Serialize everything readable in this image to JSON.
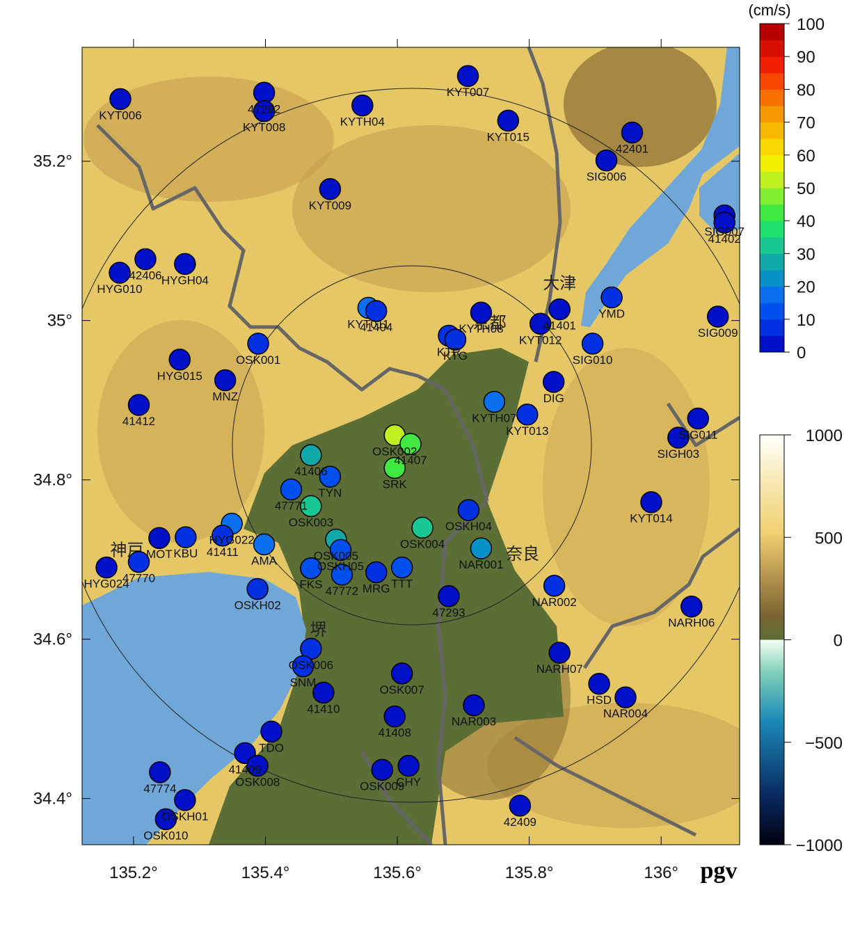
{
  "map": {
    "title": "pgv",
    "xlim": [
      135.122,
      136.119
    ],
    "ylim": [
      34.342,
      35.343
    ],
    "xticks": [
      {
        "value": 135.2,
        "label": "135.2°"
      },
      {
        "value": 135.4,
        "label": "135.4°"
      },
      {
        "value": 135.6,
        "label": "135.6°"
      },
      {
        "value": 135.8,
        "label": "135.8°"
      },
      {
        "value": 136.0,
        "label": "136°"
      }
    ],
    "yticks": [
      {
        "value": 34.4,
        "label": "34.4°"
      },
      {
        "value": 34.6,
        "label": "34.6°"
      },
      {
        "value": 34.8,
        "label": "34.8°"
      },
      {
        "value": 35.0,
        "label": "35°"
      },
      {
        "value": 35.2,
        "label": "35.2°"
      }
    ],
    "place_labels": [
      {
        "text": "大津",
        "lon": 135.846,
        "lat": 35.04
      },
      {
        "text": "京都",
        "lon": 135.74,
        "lat": 34.99
      },
      {
        "text": "奈良",
        "lon": 135.79,
        "lat": 34.7
      },
      {
        "text": "神戸",
        "lon": 135.19,
        "lat": 34.705
      },
      {
        "text": "堺",
        "lon": 135.48,
        "lat": 34.605
      }
    ],
    "stations": [
      {
        "name": "KYT006",
        "lon": 135.18,
        "lat": 35.278,
        "pgv": 2
      },
      {
        "name": "47292",
        "lon": 135.398,
        "lat": 35.286,
        "pgv": 2
      },
      {
        "name": "KYT008",
        "lon": 135.398,
        "lat": 35.263,
        "pgv": 2
      },
      {
        "name": "KYTH04",
        "lon": 135.547,
        "lat": 35.27,
        "pgv": 2
      },
      {
        "name": "KYT007",
        "lon": 135.707,
        "lat": 35.307,
        "pgv": 2
      },
      {
        "name": "KYT015",
        "lon": 135.768,
        "lat": 35.251,
        "pgv": 2
      },
      {
        "name": "42401",
        "lon": 135.956,
        "lat": 35.236,
        "pgv": 2
      },
      {
        "name": "SIG006",
        "lon": 135.917,
        "lat": 35.201,
        "pgv": 3
      },
      {
        "name": "KYT009",
        "lon": 135.498,
        "lat": 35.165,
        "pgv": 2
      },
      {
        "name": "SIG007",
        "lon": 136.096,
        "lat": 35.132,
        "pgv": 3
      },
      {
        "name": "41402",
        "lon": 136.096,
        "lat": 35.123,
        "pgv": 4
      },
      {
        "name": "HYG010",
        "lon": 135.179,
        "lat": 35.06,
        "pgv": 2
      },
      {
        "name": "42406",
        "lon": 135.218,
        "lat": 35.077,
        "pgv": 2
      },
      {
        "name": "HYGH04",
        "lon": 135.278,
        "lat": 35.071,
        "pgv": 2
      },
      {
        "name": "KYT011",
        "lon": 135.556,
        "lat": 35.016,
        "pgv": 15
      },
      {
        "name": "41404",
        "lon": 135.568,
        "lat": 35.012,
        "pgv": 7
      },
      {
        "name": "KYTH08",
        "lon": 135.727,
        "lat": 35.01,
        "pgv": 3
      },
      {
        "name": "41401",
        "lon": 135.846,
        "lat": 35.014,
        "pgv": 4
      },
      {
        "name": "YMD",
        "lon": 135.925,
        "lat": 35.029,
        "pgv": 5
      },
      {
        "name": "KYT012",
        "lon": 135.817,
        "lat": 34.996,
        "pgv": 3
      },
      {
        "name": "SIG010",
        "lon": 135.896,
        "lat": 34.971,
        "pgv": 5
      },
      {
        "name": "SIG009",
        "lon": 136.086,
        "lat": 35.005,
        "pgv": 2
      },
      {
        "name": "KTR",
        "lon": 135.678,
        "lat": 34.981,
        "pgv": 6
      },
      {
        "name": "KTG",
        "lon": 135.688,
        "lat": 34.976,
        "pgv": 6
      },
      {
        "name": "OSK001",
        "lon": 135.389,
        "lat": 34.971,
        "pgv": 5
      },
      {
        "name": "HYG015",
        "lon": 135.27,
        "lat": 34.951,
        "pgv": 4
      },
      {
        "name": "MNZ",
        "lon": 135.339,
        "lat": 34.925,
        "pgv": 3
      },
      {
        "name": "41412",
        "lon": 135.208,
        "lat": 34.894,
        "pgv": 3
      },
      {
        "name": "DIG",
        "lon": 135.837,
        "lat": 34.923,
        "pgv": 3
      },
      {
        "name": "KYTH07",
        "lon": 135.747,
        "lat": 34.898,
        "pgv": 15
      },
      {
        "name": "KYT013",
        "lon": 135.797,
        "lat": 34.882,
        "pgv": 8
      },
      {
        "name": "SIG011",
        "lon": 136.056,
        "lat": 34.877,
        "pgv": 3
      },
      {
        "name": "SIGH03",
        "lon": 136.026,
        "lat": 34.853,
        "pgv": 3
      },
      {
        "name": "OSK002",
        "lon": 135.596,
        "lat": 34.856,
        "pgv": 50
      },
      {
        "name": "41407",
        "lon": 135.62,
        "lat": 34.845,
        "pgv": 40
      },
      {
        "name": "SRK",
        "lon": 135.596,
        "lat": 34.815,
        "pgv": 43
      },
      {
        "name": "41406",
        "lon": 135.469,
        "lat": 34.831,
        "pgv": 28
      },
      {
        "name": "TYN",
        "lon": 135.498,
        "lat": 34.804,
        "pgv": 13
      },
      {
        "name": "47771",
        "lon": 135.439,
        "lat": 34.788,
        "pgv": 14
      },
      {
        "name": "OSK003",
        "lon": 135.469,
        "lat": 34.767,
        "pgv": 32
      },
      {
        "name": "HYG022",
        "lon": 135.349,
        "lat": 34.745,
        "pgv": 17
      },
      {
        "name": "41411",
        "lon": 135.335,
        "lat": 34.73,
        "pgv": 8
      },
      {
        "name": "KBU",
        "lon": 135.279,
        "lat": 34.728,
        "pgv": 8
      },
      {
        "name": "MOT",
        "lon": 135.239,
        "lat": 34.727,
        "pgv": 3
      },
      {
        "name": "47770",
        "lon": 135.208,
        "lat": 34.697,
        "pgv": 5
      },
      {
        "name": "HYG024",
        "lon": 135.159,
        "lat": 34.69,
        "pgv": 3
      },
      {
        "name": "AMA",
        "lon": 135.398,
        "lat": 34.719,
        "pgv": 16
      },
      {
        "name": "OSK005",
        "lon": 135.507,
        "lat": 34.725,
        "pgv": 25
      },
      {
        "name": "OSKH05",
        "lon": 135.514,
        "lat": 34.712,
        "pgv": 14
      },
      {
        "name": "FKS",
        "lon": 135.469,
        "lat": 34.689,
        "pgv": 14
      },
      {
        "name": "47772",
        "lon": 135.516,
        "lat": 34.681,
        "pgv": 10
      },
      {
        "name": "MRG",
        "lon": 135.568,
        "lat": 34.684,
        "pgv": 6
      },
      {
        "name": "TTT",
        "lon": 135.607,
        "lat": 34.69,
        "pgv": 10
      },
      {
        "name": "OSK004",
        "lon": 135.638,
        "lat": 34.74,
        "pgv": 30
      },
      {
        "name": "OSKH04",
        "lon": 135.708,
        "lat": 34.762,
        "pgv": 5
      },
      {
        "name": "NAR001",
        "lon": 135.727,
        "lat": 34.714,
        "pgv": 24
      },
      {
        "name": "NAR002",
        "lon": 135.838,
        "lat": 34.667,
        "pgv": 5
      },
      {
        "name": "47293",
        "lon": 135.678,
        "lat": 34.654,
        "pgv": 3
      },
      {
        "name": "OSKH02",
        "lon": 135.388,
        "lat": 34.663,
        "pgv": 8
      },
      {
        "name": "NARH06",
        "lon": 136.046,
        "lat": 34.641,
        "pgv": 3
      },
      {
        "name": "KYT014",
        "lon": 135.985,
        "lat": 34.772,
        "pgv": 3
      },
      {
        "name": "NARH07",
        "lon": 135.846,
        "lat": 34.583,
        "pgv": 2
      },
      {
        "name": "HSD",
        "lon": 135.906,
        "lat": 34.544,
        "pgv": 3
      },
      {
        "name": "NAR004",
        "lon": 135.946,
        "lat": 34.527,
        "pgv": 3
      },
      {
        "name": "OSK006",
        "lon": 135.469,
        "lat": 34.588,
        "pgv": 6
      },
      {
        "name": "SNM",
        "lon": 135.457,
        "lat": 34.566,
        "pgv": 6
      },
      {
        "name": "OSK007",
        "lon": 135.607,
        "lat": 34.557,
        "pgv": 3
      },
      {
        "name": "41410",
        "lon": 135.488,
        "lat": 34.533,
        "pgv": 2
      },
      {
        "name": "NAR003",
        "lon": 135.716,
        "lat": 34.517,
        "pgv": 3
      },
      {
        "name": "41408",
        "lon": 135.596,
        "lat": 34.503,
        "pgv": 2
      },
      {
        "name": "TDO",
        "lon": 135.409,
        "lat": 34.484,
        "pgv": 2
      },
      {
        "name": "41409",
        "lon": 135.369,
        "lat": 34.457,
        "pgv": 2
      },
      {
        "name": "OSK008",
        "lon": 135.388,
        "lat": 34.441,
        "pgv": 2
      },
      {
        "name": "OSK009",
        "lon": 135.577,
        "lat": 34.436,
        "pgv": 2
      },
      {
        "name": "CHY",
        "lon": 135.617,
        "lat": 34.441,
        "pgv": 2
      },
      {
        "name": "47774",
        "lon": 135.24,
        "lat": 34.433,
        "pgv": 2
      },
      {
        "name": "OSKH01",
        "lon": 135.278,
        "lat": 34.398,
        "pgv": 2
      },
      {
        "name": "OSK010",
        "lon": 135.249,
        "lat": 34.374,
        "pgv": 2
      },
      {
        "name": "42409",
        "lon": 135.786,
        "lat": 34.391,
        "pgv": 2
      }
    ],
    "pgv_scale": {
      "unit": "(cm/s)",
      "lim": [
        0,
        100
      ],
      "ticks": [
        0,
        10,
        20,
        30,
        40,
        50,
        60,
        70,
        80,
        90,
        100
      ],
      "colors": [
        "#0010c8",
        "#0030e0",
        "#0050f0",
        "#0a70f0",
        "#0890c8",
        "#10a8a8",
        "#18c890",
        "#20e070",
        "#40e840",
        "#80f030",
        "#c0f020",
        "#f0f000",
        "#f8d800",
        "#f8b800",
        "#f89800",
        "#f87000",
        "#f84800",
        "#f02000",
        "#d81000",
        "#b80000"
      ]
    },
    "elevation_scale": {
      "lim": [
        -1000,
        1000
      ],
      "ticks": [
        {
          "value": -1000,
          "label": "−1000"
        },
        {
          "value": -500,
          "label": "−500"
        },
        0,
        500,
        1000
      ]
    }
  }
}
